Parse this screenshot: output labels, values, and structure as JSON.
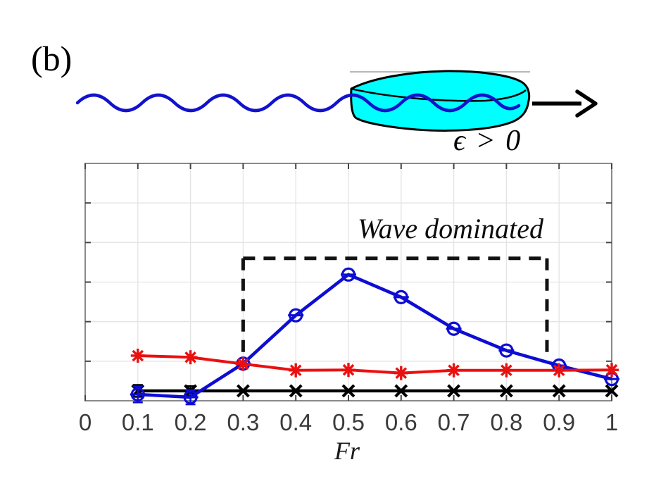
{
  "figure": {
    "panel_label": "(b)"
  },
  "illustration": {
    "condition_label": "ϵ > 0",
    "hull_fill_color": "#00ffff",
    "wave_color": "#1212cc",
    "outline_color": "#000000",
    "surface_line_color": "#b8b8b8"
  },
  "chart_data": {
    "type": "line",
    "title": "",
    "xlabel": "Fr",
    "ylabel": "",
    "xlim": [
      0,
      1
    ],
    "ylim": [
      0,
      6
    ],
    "grid": true,
    "legend": "none",
    "y_tick_labels_shown": false,
    "x_ticks": [
      0,
      0.1,
      0.2,
      0.3,
      0.4,
      0.5,
      0.6,
      0.7,
      0.8,
      0.9,
      1
    ],
    "x_tick_labels": [
      "0",
      "0.1",
      "0.2",
      "0.3",
      "0.4",
      "0.5",
      "0.6",
      "0.7",
      "0.8",
      "0.9",
      "1"
    ],
    "y_gridlines": [
      1,
      2,
      3,
      4,
      5
    ],
    "axis_color": "#8a8a8a",
    "grid_color": "#e4e4e4",
    "tick_color": "#454545",
    "series": [
      {
        "id": "black-crosses",
        "color": "#000000",
        "marker": "x",
        "line_width": 4.4,
        "x": [
          0.1,
          0.2,
          0.3,
          0.4,
          0.5,
          0.6,
          0.7,
          0.8,
          0.9,
          1.0
        ],
        "y": [
          0.25,
          0.25,
          0.25,
          0.25,
          0.25,
          0.25,
          0.25,
          0.25,
          0.25,
          0.25
        ],
        "error_bars": [
          {
            "x": 0.1,
            "plus": 0.15,
            "minus": 0.15
          },
          {
            "x": 0.2,
            "plus": 0.12,
            "minus": 0.12
          }
        ]
      },
      {
        "id": "blue-circles",
        "color": "#0d0dd4",
        "marker": "circle-dash",
        "line_width": 4.6,
        "x": [
          0.1,
          0.2,
          0.3,
          0.4,
          0.5,
          0.6,
          0.7,
          0.8,
          0.9,
          1.0
        ],
        "y": [
          0.16,
          0.09,
          0.94,
          2.16,
          3.19,
          2.62,
          1.82,
          1.27,
          0.89,
          0.55
        ],
        "error_bars": [
          {
            "x": 0.1,
            "plus": 0.2,
            "minus": 0.2
          },
          {
            "x": 0.2,
            "plus": 0.18,
            "minus": 0.18
          }
        ]
      },
      {
        "id": "red-asterisks",
        "color": "#ea1010",
        "marker": "asterisk",
        "line_width": 4.0,
        "x": [
          0.1,
          0.2,
          0.3,
          0.4,
          0.5,
          0.6,
          0.7,
          0.8,
          0.9,
          1.0
        ],
        "y": [
          1.14,
          1.1,
          0.93,
          0.77,
          0.78,
          0.7,
          0.77,
          0.77,
          0.77,
          0.78
        ],
        "error_bars": []
      }
    ],
    "annotation": {
      "label": "Wave dominated",
      "style": "dashed",
      "color": "#111111",
      "box": {
        "x1": 0.3,
        "x2": 0.877,
        "y_top": 3.6,
        "y_left_end": 1.0,
        "y_right_end": 1.15
      }
    }
  }
}
